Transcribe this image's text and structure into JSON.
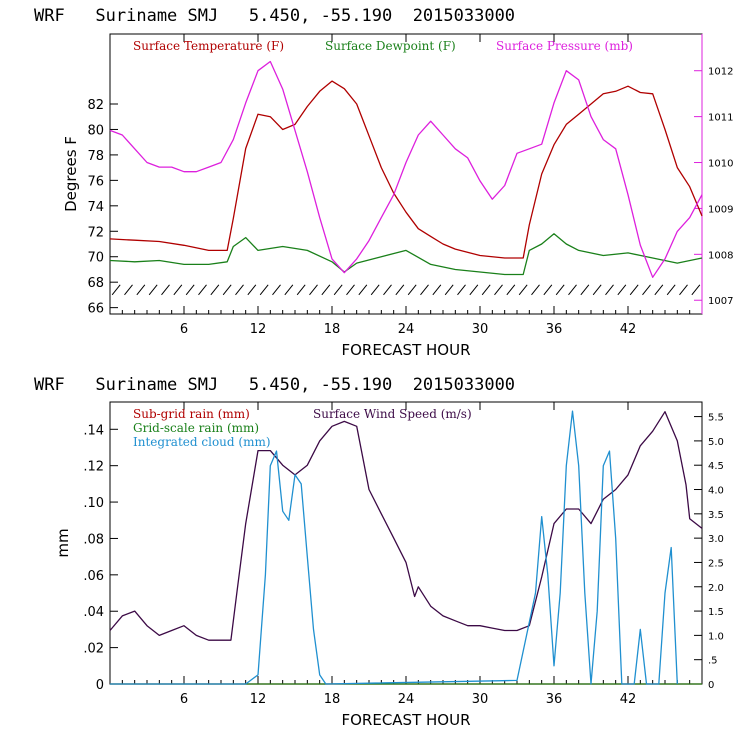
{
  "chart_data": [
    {
      "type": "line",
      "title": "WRF   Suriname SMJ   5.450, -55.190  2015033000",
      "xlabel": "FORECAST HOUR",
      "ylabel": "Degrees F",
      "xlim": [
        0,
        48
      ],
      "ylim": [
        65.5,
        87.5
      ],
      "y2lim": [
        1006.7,
        1012.8
      ],
      "x_ticks": [
        6,
        12,
        18,
        24,
        30,
        36,
        42
      ],
      "x_tick_labels": [
        "6",
        "12",
        "18",
        "24",
        "30",
        "36",
        "42"
      ],
      "y_ticks": [
        66,
        68,
        70,
        72,
        74,
        76,
        78,
        80,
        82
      ],
      "y_tick_labels": [
        "66",
        "68",
        "70",
        "72",
        "74",
        "76",
        "78",
        "80",
        "82"
      ],
      "y2_ticks": [
        1007,
        1008,
        1009,
        1010,
        1011,
        1012
      ],
      "y2_tick_labels": [
        "1007",
        "1008",
        "1009",
        "1010",
        "1011",
        "1012"
      ],
      "legend": [
        "Surface Temperature (F)",
        "Surface Dewpoint (F)",
        "Surface Pressure (mb)"
      ],
      "wind_barb_y": 67.4,
      "series": [
        {
          "name": "Surface Temperature (F)",
          "color": "#b00000",
          "axis": "left",
          "x": [
            0,
            2,
            4,
            6,
            8,
            9.5,
            10,
            11,
            12,
            13,
            14,
            15,
            16,
            17,
            18,
            19,
            20,
            21,
            22,
            23,
            24,
            25,
            26,
            27,
            28,
            30,
            32,
            33.5,
            34,
            35,
            36,
            37,
            38,
            39,
            40,
            41,
            42,
            43,
            44,
            45,
            46,
            47,
            48
          ],
          "y": [
            71.4,
            71.3,
            71.2,
            70.9,
            70.5,
            70.5,
            73.0,
            78.5,
            81.2,
            81.0,
            80.0,
            80.4,
            81.8,
            83.0,
            83.8,
            83.2,
            82.0,
            79.5,
            77.0,
            75.0,
            73.5,
            72.2,
            71.6,
            71.0,
            70.6,
            70.1,
            69.9,
            69.9,
            72.5,
            76.5,
            78.8,
            80.4,
            81.2,
            82.0,
            82.8,
            83.0,
            83.4,
            82.9,
            82.8,
            80.0,
            77.0,
            75.5,
            73.2
          ]
        },
        {
          "name": "Surface Dewpoint (F)",
          "color": "#1a801a",
          "axis": "left",
          "x": [
            0,
            2,
            4,
            6,
            8,
            9.5,
            10,
            11,
            12,
            14,
            16,
            18,
            19,
            20,
            22,
            24,
            26,
            28,
            30,
            32,
            33.5,
            34,
            35,
            36,
            37,
            38,
            40,
            42,
            44,
            46,
            48
          ],
          "y": [
            69.7,
            69.6,
            69.7,
            69.4,
            69.4,
            69.6,
            70.8,
            71.5,
            70.5,
            70.8,
            70.5,
            69.6,
            68.8,
            69.5,
            70.0,
            70.5,
            69.4,
            69.0,
            68.8,
            68.6,
            68.6,
            70.5,
            71.0,
            71.8,
            71.0,
            70.5,
            70.1,
            70.3,
            69.9,
            69.5,
            69.9
          ]
        },
        {
          "name": "Surface Pressure (mb)",
          "color": "#dd20dd",
          "axis": "right",
          "x": [
            0,
            1,
            2,
            3,
            4,
            5,
            6,
            7,
            8,
            9,
            10,
            11,
            12,
            13,
            14,
            15,
            16,
            17,
            18,
            19,
            20,
            21,
            22,
            23,
            24,
            25,
            26,
            27,
            28,
            29,
            30,
            31,
            32,
            33,
            34,
            35,
            36,
            37,
            38,
            39,
            40,
            41,
            42,
            43,
            44,
            45,
            46,
            47,
            48
          ],
          "y": [
            1010.7,
            1010.6,
            1010.3,
            1010.0,
            1009.9,
            1009.9,
            1009.8,
            1009.8,
            1009.9,
            1010.0,
            1010.5,
            1011.3,
            1012.0,
            1012.2,
            1011.6,
            1010.7,
            1009.8,
            1008.8,
            1007.9,
            1007.6,
            1007.9,
            1008.3,
            1008.8,
            1009.3,
            1010.0,
            1010.6,
            1010.9,
            1010.6,
            1010.3,
            1010.1,
            1009.6,
            1009.2,
            1009.5,
            1010.2,
            1010.3,
            1010.4,
            1011.3,
            1012.0,
            1011.8,
            1011.0,
            1010.5,
            1010.3,
            1009.3,
            1008.2,
            1007.5,
            1007.9,
            1008.5,
            1008.8,
            1009.3
          ]
        }
      ]
    },
    {
      "type": "line",
      "title": "WRF   Suriname SMJ   5.450, -55.190  2015033000",
      "xlabel": "FORECAST HOUR",
      "ylabel": "mm",
      "xlim": [
        0,
        48
      ],
      "ylim": [
        0,
        0.155
      ],
      "y2lim": [
        0,
        5.8
      ],
      "x_ticks": [
        6,
        12,
        18,
        24,
        30,
        36,
        42
      ],
      "x_tick_labels": [
        "6",
        "12",
        "18",
        "24",
        "30",
        "36",
        "42"
      ],
      "y_ticks": [
        0,
        0.02,
        0.04,
        0.06,
        0.08,
        0.1,
        0.12,
        0.14
      ],
      "y_tick_labels": [
        "0",
        ".02",
        ".04",
        ".06",
        ".08",
        ".10",
        ".12",
        ".14"
      ],
      "y2_ticks": [
        0,
        0.5,
        1.0,
        1.5,
        2.0,
        2.5,
        3.0,
        3.5,
        4.0,
        4.5,
        5.0,
        5.5
      ],
      "y2_tick_labels": [
        "0",
        ".5",
        "1.0",
        "1.5",
        "2.0",
        "2.5",
        "3.0",
        "3.5",
        "4.0",
        "4.5",
        "5.0",
        "5.5"
      ],
      "legend": [
        "Sub-grid rain (mm)",
        "Surface Wind Speed (m/s)",
        "Grid-scale rain (mm)",
        "Integrated cloud (mm)"
      ],
      "series": [
        {
          "name": "Sub-grid rain (mm)",
          "color": "#b00000",
          "axis": "left",
          "x": [
            0,
            48
          ],
          "y": [
            0,
            0
          ]
        },
        {
          "name": "Grid-scale rain (mm)",
          "color": "#1a801a",
          "axis": "left",
          "x": [
            0,
            48
          ],
          "y": [
            0,
            0
          ]
        },
        {
          "name": "Surface Wind Speed (m/s)",
          "color": "#3c0a46",
          "axis": "right",
          "x": [
            0,
            1,
            2,
            3,
            4,
            5,
            6,
            7,
            8,
            9,
            9.8,
            10.3,
            11,
            12,
            13,
            14,
            15,
            16,
            17,
            18,
            19,
            20,
            21,
            22,
            23,
            24,
            24.7,
            25,
            26,
            27,
            28,
            29,
            30,
            31,
            32,
            33,
            34,
            35,
            36,
            37,
            38,
            39,
            40,
            41,
            42,
            43,
            44,
            45,
            46,
            46.7,
            47,
            48
          ],
          "y": [
            1.1,
            1.4,
            1.5,
            1.2,
            1.0,
            1.1,
            1.2,
            1.0,
            0.9,
            0.9,
            0.9,
            1.9,
            3.3,
            4.8,
            4.8,
            4.5,
            4.3,
            4.5,
            5.0,
            5.3,
            5.4,
            5.3,
            4.0,
            3.5,
            3.0,
            2.5,
            1.8,
            2.0,
            1.6,
            1.4,
            1.3,
            1.2,
            1.2,
            1.15,
            1.1,
            1.1,
            1.2,
            2.2,
            3.3,
            3.6,
            3.6,
            3.3,
            3.8,
            4.0,
            4.3,
            4.9,
            5.2,
            5.6,
            5.0,
            4.1,
            3.4,
            3.2
          ]
        },
        {
          "name": "Integrated cloud (mm)",
          "color": "#2090d0",
          "axis": "left",
          "x": [
            0,
            11,
            12,
            12.6,
            13,
            13.5,
            14,
            14.5,
            15,
            15.5,
            16,
            16.5,
            17,
            17.5,
            33,
            34.5,
            35,
            35.5,
            36,
            36.5,
            37,
            37.5,
            38,
            38.5,
            39,
            39.5,
            40,
            40.5,
            41,
            41.5,
            42,
            42.5,
            43,
            43.5,
            44,
            44.5,
            45,
            45.5,
            46
          ],
          "y": [
            0,
            0,
            0.005,
            0.06,
            0.12,
            0.128,
            0.095,
            0.09,
            0.115,
            0.11,
            0.07,
            0.03,
            0.005,
            0,
            0.002,
            0.05,
            0.092,
            0.06,
            0.01,
            0.05,
            0.12,
            0.15,
            0.12,
            0.05,
            0,
            0.04,
            0.12,
            0.128,
            0.08,
            0,
            0,
            0,
            0.03,
            0,
            0,
            0,
            0.05,
            0.075,
            0
          ]
        }
      ]
    }
  ]
}
